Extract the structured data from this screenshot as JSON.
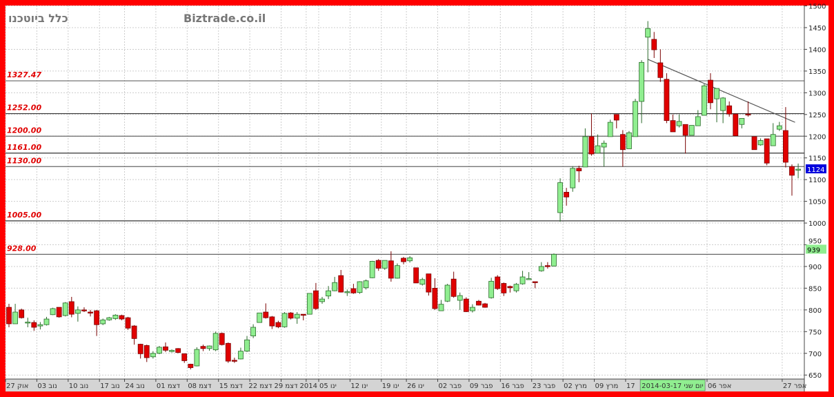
{
  "header": {
    "title": "כלל ביוטכנו",
    "watermark": "Biztrade.co.il"
  },
  "chart_data": {
    "type": "candlestick",
    "ylim": [
      625,
      1500
    ],
    "y_ticks": [
      650,
      700,
      750,
      800,
      850,
      900,
      950,
      1000,
      1050,
      1100,
      1150,
      1200,
      1250,
      1300,
      1350,
      1400,
      1450,
      1500
    ],
    "grid": true,
    "colors": {
      "up": "#90ee90",
      "down": "#e00000",
      "frame": "#ff0000",
      "level_text": "#e00000",
      "last_badge": "#0000dd",
      "marker_badge": "#90ee90",
      "tooltip": "#90ee90"
    },
    "x_labels": [
      {
        "label": "27 אוק",
        "candle": 0
      },
      {
        "label": "03 נוב",
        "candle": 5
      },
      {
        "label": "10 נוב",
        "candle": 10
      },
      {
        "label": "17 נוב",
        "candle": 15
      },
      {
        "label": "24 נוב",
        "candle": 19
      },
      {
        "label": "01 דצמ",
        "candle": 24
      },
      {
        "label": "08 דצמ",
        "candle": 29
      },
      {
        "label": "15 דצמ",
        "candle": 34
      },
      {
        "label": "22 דצמ",
        "candle": 39
      },
      {
        "label": "29 דצמ",
        "candle": 44
      },
      {
        "label": "2014",
        "candle": 48
      },
      {
        "label": "05 ינו",
        "candle": 50
      },
      {
        "label": "12 ינו",
        "candle": 55
      },
      {
        "label": "19 ינו",
        "candle": 60
      },
      {
        "label": "26 ינו",
        "candle": 64
      },
      {
        "label": "02 פבר",
        "candle": 69
      },
      {
        "label": "09 פבר",
        "candle": 74
      },
      {
        "label": "16 פבר",
        "candle": 79
      },
      {
        "label": "23 פבר",
        "candle": 84
      },
      {
        "label": "02 מרץ",
        "candle": 89
      },
      {
        "label": "09 מרץ",
        "candle": 94
      },
      {
        "label": "17",
        "candle": 99
      },
      {
        "label": "06 אפר",
        "candle": 112
      },
      {
        "label": "27 אפר",
        "candle": 124
      }
    ],
    "tooltip_date": {
      "label": "2014-03-17 יום שני",
      "candle": 101
    },
    "levels": [
      {
        "value": 1327.47,
        "label": "1327.47"
      },
      {
        "value": 1252,
        "label": "1252.00"
      },
      {
        "value": 1200,
        "label": "1200.00"
      },
      {
        "value": 1161,
        "label": "1161.00"
      },
      {
        "value": 1130,
        "label": "1130.00"
      },
      {
        "value": 1005,
        "label": "1005.00"
      },
      {
        "value": 928,
        "label": "928.00"
      }
    ],
    "trendline": {
      "from": {
        "candle": 102,
        "value": 1377
      },
      "to": {
        "candle": 125.5,
        "value": 1232
      }
    },
    "last_price": {
      "value": 1124,
      "label": "1124"
    },
    "marker_price": {
      "value": 939,
      "label": "939"
    },
    "ohlc_format": [
      "open",
      "high",
      "low",
      "close"
    ],
    "candles": [
      [
        806,
        814,
        760,
        768
      ],
      [
        768,
        814,
        768,
        795
      ],
      [
        800,
        803,
        780,
        782
      ],
      [
        770,
        782,
        760,
        772
      ],
      [
        771,
        776,
        752,
        760
      ],
      [
        763,
        772,
        755,
        766
      ],
      [
        766,
        784,
        764,
        779
      ],
      [
        789,
        805,
        788,
        803
      ],
      [
        806,
        806,
        782,
        784
      ],
      [
        787,
        818,
        785,
        816
      ],
      [
        819,
        830,
        783,
        790
      ],
      [
        792,
        808,
        773,
        800
      ],
      [
        800,
        806,
        795,
        798
      ],
      [
        795,
        800,
        785,
        793
      ],
      [
        798,
        800,
        740,
        766
      ],
      [
        768,
        780,
        765,
        777
      ],
      [
        777,
        784,
        775,
        782
      ],
      [
        780,
        790,
        777,
        788
      ],
      [
        787,
        789,
        776,
        779
      ],
      [
        782,
        784,
        754,
        758
      ],
      [
        763,
        765,
        720,
        734
      ],
      [
        721,
        722,
        688,
        699
      ],
      [
        718,
        720,
        680,
        690
      ],
      [
        692,
        705,
        688,
        700
      ],
      [
        700,
        717,
        698,
        714
      ],
      [
        715,
        725,
        703,
        707
      ],
      [
        704,
        709,
        702,
        707
      ],
      [
        711,
        712,
        700,
        702
      ],
      [
        699,
        700,
        678,
        683
      ],
      [
        675,
        676,
        663,
        667
      ],
      [
        671,
        714,
        670,
        709
      ],
      [
        716,
        720,
        705,
        711
      ],
      [
        711,
        718,
        706,
        717
      ],
      [
        708,
        750,
        705,
        746
      ],
      [
        746,
        748,
        718,
        720
      ],
      [
        723,
        725,
        678,
        682
      ],
      [
        684,
        690,
        678,
        682
      ],
      [
        687,
        713,
        686,
        705
      ],
      [
        705,
        740,
        703,
        731
      ],
      [
        740,
        767,
        735,
        760
      ],
      [
        771,
        793,
        771,
        793
      ],
      [
        795,
        815,
        780,
        782
      ],
      [
        784,
        786,
        756,
        763
      ],
      [
        771,
        775,
        758,
        761
      ],
      [
        761,
        795,
        759,
        792
      ],
      [
        793,
        795,
        778,
        781
      ],
      [
        781,
        795,
        768,
        790
      ],
      [
        790,
        790,
        776,
        788
      ],
      [
        790,
        838,
        790,
        838
      ],
      [
        844,
        862,
        800,
        803
      ],
      [
        819,
        830,
        814,
        825
      ],
      [
        832,
        855,
        825,
        844
      ],
      [
        844,
        876,
        843,
        863
      ],
      [
        879,
        892,
        840,
        841
      ],
      [
        840,
        847,
        832,
        842
      ],
      [
        849,
        860,
        837,
        839
      ],
      [
        840,
        866,
        837,
        865
      ],
      [
        851,
        870,
        847,
        867
      ],
      [
        874,
        913,
        873,
        912
      ],
      [
        914,
        917,
        890,
        896
      ],
      [
        896,
        914,
        892,
        914
      ],
      [
        913,
        935,
        865,
        873
      ],
      [
        873,
        907,
        872,
        902
      ],
      [
        919,
        922,
        905,
        911
      ],
      [
        913,
        924,
        909,
        920
      ],
      [
        897,
        897,
        862,
        862
      ],
      [
        859,
        874,
        856,
        870
      ],
      [
        883,
        883,
        833,
        841
      ],
      [
        850,
        873,
        800,
        803
      ],
      [
        798,
        823,
        798,
        813
      ],
      [
        820,
        860,
        818,
        857
      ],
      [
        871,
        888,
        828,
        831
      ],
      [
        822,
        840,
        800,
        833
      ],
      [
        825,
        829,
        795,
        796
      ],
      [
        798,
        813,
        794,
        806
      ],
      [
        820,
        823,
        810,
        811
      ],
      [
        814,
        816,
        805,
        806
      ],
      [
        828,
        874,
        826,
        866
      ],
      [
        876,
        880,
        846,
        849
      ],
      [
        861,
        863,
        832,
        839
      ],
      [
        854,
        856,
        840,
        851
      ],
      [
        844,
        862,
        840,
        859
      ],
      [
        860,
        890,
        858,
        876
      ],
      [
        870,
        887,
        870,
        872
      ],
      [
        865,
        865,
        850,
        864
      ],
      [
        890,
        910,
        888,
        900
      ],
      [
        902,
        910,
        895,
        901
      ],
      [
        901,
        930,
        900,
        928
      ],
      [
        1024,
        1103,
        1003,
        1093
      ],
      [
        1071,
        1081,
        1040,
        1060
      ],
      [
        1081,
        1131,
        1072,
        1126
      ],
      [
        1126,
        1132,
        1094,
        1120
      ],
      [
        1129,
        1218,
        1129,
        1199
      ],
      [
        1199,
        1252,
        1155,
        1159
      ],
      [
        1161,
        1204,
        1160,
        1178
      ],
      [
        1175,
        1190,
        1130,
        1184
      ],
      [
        1199,
        1238,
        1199,
        1232
      ],
      [
        1250,
        1250,
        1218,
        1237
      ],
      [
        1204,
        1214,
        1130,
        1169
      ],
      [
        1171,
        1212,
        1171,
        1208
      ],
      [
        1199,
        1286,
        1199,
        1280
      ],
      [
        1280,
        1375,
        1230,
        1370
      ],
      [
        1428,
        1465,
        1347,
        1448
      ],
      [
        1423,
        1440,
        1380,
        1399
      ],
      [
        1369,
        1400,
        1325,
        1335
      ],
      [
        1331,
        1345,
        1230,
        1236
      ],
      [
        1236,
        1250,
        1210,
        1210
      ],
      [
        1224,
        1250,
        1220,
        1234
      ],
      [
        1227,
        1227,
        1160,
        1202
      ],
      [
        1202,
        1225,
        1202,
        1225
      ],
      [
        1224,
        1260,
        1224,
        1245
      ],
      [
        1248,
        1320,
        1248,
        1316
      ],
      [
        1329,
        1345,
        1262,
        1277
      ],
      [
        1286,
        1310,
        1232,
        1310
      ],
      [
        1259,
        1290,
        1230,
        1288
      ],
      [
        1270,
        1280,
        1245,
        1251
      ],
      [
        1251,
        1251,
        1201,
        1201
      ],
      [
        1227,
        1241,
        1218,
        1241
      ],
      [
        1251,
        1280,
        1245,
        1249
      ],
      [
        1199,
        1199,
        1169,
        1169
      ],
      [
        1180,
        1195,
        1178,
        1190
      ],
      [
        1194,
        1194,
        1133,
        1138
      ],
      [
        1178,
        1230,
        1178,
        1204
      ],
      [
        1216,
        1233,
        1212,
        1224
      ],
      [
        1213,
        1267,
        1128,
        1140
      ],
      [
        1130,
        1135,
        1063,
        1110
      ],
      [
        1122,
        1137,
        1103,
        1124
      ]
    ]
  }
}
